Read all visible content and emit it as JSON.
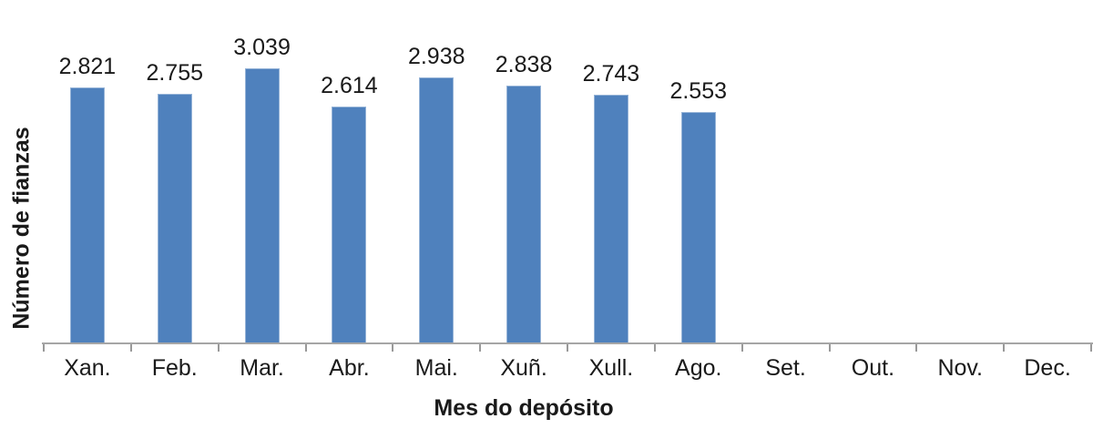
{
  "chart_data": {
    "type": "bar",
    "title": "",
    "xlabel": "Mes do depósito",
    "ylabel": "Número de fianzas",
    "categories": [
      "Xan.",
      "Feb.",
      "Mar.",
      "Abr.",
      "Mai.",
      "Xuñ.",
      "Xull.",
      "Ago.",
      "Set.",
      "Out.",
      "Nov.",
      "Dec."
    ],
    "values": [
      2821,
      2755,
      3039,
      2614,
      2938,
      2838,
      2743,
      2553,
      null,
      null,
      null,
      null
    ],
    "value_labels": [
      "2.821",
      "2.755",
      "3.039",
      "2.614",
      "2.938",
      "2.838",
      "2.743",
      "2.553",
      "",
      "",
      "",
      ""
    ],
    "ylim": [
      0,
      3790
    ],
    "grid": false,
    "legend": false,
    "bar_color": "#4f81bd",
    "bar_border_color": "#95b3d7",
    "axis_line_color": "#a6a6a6",
    "tick_color": "#999999",
    "text_color": "#1a1a1a"
  }
}
